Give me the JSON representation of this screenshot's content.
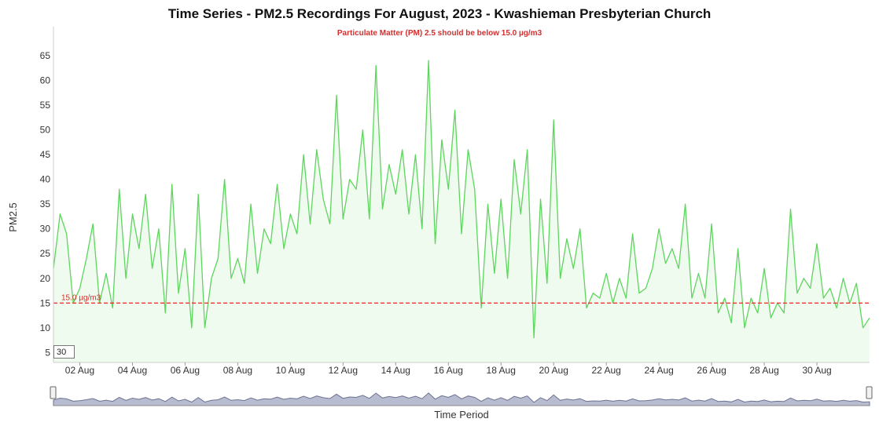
{
  "chart_data": {
    "type": "area",
    "title": "Time Series - PM2.5 Recordings For August, 2023 - Kwashieman Presbyterian Church",
    "subtitle": "Particulate Matter (PM) 2.5 should be below 15.0 µg/m3",
    "xlabel": "Time Period",
    "ylabel": "PM2.5",
    "ylim": [
      3,
      68
    ],
    "y_ticks": [
      5,
      10,
      15,
      20,
      25,
      30,
      35,
      40,
      45,
      50,
      55,
      60,
      65
    ],
    "x_range": [
      "2023-08-01",
      "2023-09-01"
    ],
    "x_ticks": [
      {
        "date": "2023-08-02",
        "label": "02 Aug"
      },
      {
        "date": "2023-08-04",
        "label": "04 Aug"
      },
      {
        "date": "2023-08-06",
        "label": "06 Aug"
      },
      {
        "date": "2023-08-08",
        "label": "08 Aug"
      },
      {
        "date": "2023-08-10",
        "label": "10 Aug"
      },
      {
        "date": "2023-08-12",
        "label": "12 Aug"
      },
      {
        "date": "2023-08-14",
        "label": "14 Aug"
      },
      {
        "date": "2023-08-16",
        "label": "16 Aug"
      },
      {
        "date": "2023-08-18",
        "label": "18 Aug"
      },
      {
        "date": "2023-08-20",
        "label": "20 Aug"
      },
      {
        "date": "2023-08-22",
        "label": "22 Aug"
      },
      {
        "date": "2023-08-24",
        "label": "24 Aug"
      },
      {
        "date": "2023-08-26",
        "label": "26 Aug"
      },
      {
        "date": "2023-08-28",
        "label": "28 Aug"
      },
      {
        "date": "2023-08-30",
        "label": "30 Aug"
      }
    ],
    "reference_line": {
      "value": 15.0,
      "label": "15.0 µg/m3",
      "color": "#e53935"
    },
    "series": [
      {
        "color": "#5cd65c",
        "fill": "#eefbee",
        "points": [
          [
            "2023-08-01 00:00",
            22
          ],
          [
            "2023-08-01 06:00",
            33
          ],
          [
            "2023-08-01 12:00",
            29
          ],
          [
            "2023-08-01 18:00",
            15
          ],
          [
            "2023-08-02 00:00",
            18
          ],
          [
            "2023-08-02 06:00",
            24
          ],
          [
            "2023-08-02 12:00",
            31
          ],
          [
            "2023-08-02 18:00",
            15
          ],
          [
            "2023-08-03 00:00",
            21
          ],
          [
            "2023-08-03 06:00",
            14
          ],
          [
            "2023-08-03 12:00",
            38
          ],
          [
            "2023-08-03 18:00",
            20
          ],
          [
            "2023-08-04 00:00",
            33
          ],
          [
            "2023-08-04 06:00",
            26
          ],
          [
            "2023-08-04 12:00",
            37
          ],
          [
            "2023-08-04 18:00",
            22
          ],
          [
            "2023-08-05 00:00",
            30
          ],
          [
            "2023-08-05 06:00",
            13
          ],
          [
            "2023-08-05 12:00",
            39
          ],
          [
            "2023-08-05 18:00",
            17
          ],
          [
            "2023-08-06 00:00",
            26
          ],
          [
            "2023-08-06 06:00",
            10
          ],
          [
            "2023-08-06 12:00",
            37
          ],
          [
            "2023-08-06 18:00",
            10
          ],
          [
            "2023-08-07 00:00",
            20
          ],
          [
            "2023-08-07 06:00",
            24
          ],
          [
            "2023-08-07 12:00",
            40
          ],
          [
            "2023-08-07 18:00",
            20
          ],
          [
            "2023-08-08 00:00",
            24
          ],
          [
            "2023-08-08 06:00",
            19
          ],
          [
            "2023-08-08 12:00",
            35
          ],
          [
            "2023-08-08 18:00",
            21
          ],
          [
            "2023-08-09 00:00",
            30
          ],
          [
            "2023-08-09 06:00",
            27
          ],
          [
            "2023-08-09 12:00",
            39
          ],
          [
            "2023-08-09 18:00",
            26
          ],
          [
            "2023-08-10 00:00",
            33
          ],
          [
            "2023-08-10 06:00",
            29
          ],
          [
            "2023-08-10 12:00",
            45
          ],
          [
            "2023-08-10 18:00",
            31
          ],
          [
            "2023-08-11 00:00",
            46
          ],
          [
            "2023-08-11 06:00",
            36
          ],
          [
            "2023-08-11 12:00",
            31
          ],
          [
            "2023-08-11 18:00",
            57
          ],
          [
            "2023-08-12 00:00",
            32
          ],
          [
            "2023-08-12 06:00",
            40
          ],
          [
            "2023-08-12 12:00",
            38
          ],
          [
            "2023-08-12 18:00",
            50
          ],
          [
            "2023-08-13 00:00",
            32
          ],
          [
            "2023-08-13 06:00",
            63
          ],
          [
            "2023-08-13 12:00",
            34
          ],
          [
            "2023-08-13 18:00",
            43
          ],
          [
            "2023-08-14 00:00",
            37
          ],
          [
            "2023-08-14 06:00",
            46
          ],
          [
            "2023-08-14 12:00",
            33
          ],
          [
            "2023-08-14 18:00",
            45
          ],
          [
            "2023-08-15 00:00",
            30
          ],
          [
            "2023-08-15 06:00",
            64
          ],
          [
            "2023-08-15 12:00",
            27
          ],
          [
            "2023-08-15 18:00",
            48
          ],
          [
            "2023-08-16 00:00",
            38
          ],
          [
            "2023-08-16 06:00",
            54
          ],
          [
            "2023-08-16 12:00",
            29
          ],
          [
            "2023-08-16 18:00",
            46
          ],
          [
            "2023-08-17 00:00",
            38
          ],
          [
            "2023-08-17 06:00",
            14
          ],
          [
            "2023-08-17 12:00",
            35
          ],
          [
            "2023-08-17 18:00",
            21
          ],
          [
            "2023-08-18 00:00",
            36
          ],
          [
            "2023-08-18 06:00",
            20
          ],
          [
            "2023-08-18 12:00",
            44
          ],
          [
            "2023-08-18 18:00",
            33
          ],
          [
            "2023-08-19 00:00",
            46
          ],
          [
            "2023-08-19 06:00",
            8
          ],
          [
            "2023-08-19 12:00",
            36
          ],
          [
            "2023-08-19 18:00",
            19
          ],
          [
            "2023-08-20 00:00",
            52
          ],
          [
            "2023-08-20 06:00",
            20
          ],
          [
            "2023-08-20 12:00",
            28
          ],
          [
            "2023-08-20 18:00",
            22
          ],
          [
            "2023-08-21 00:00",
            30
          ],
          [
            "2023-08-21 06:00",
            14
          ],
          [
            "2023-08-21 12:00",
            17
          ],
          [
            "2023-08-21 18:00",
            16
          ],
          [
            "2023-08-22 00:00",
            21
          ],
          [
            "2023-08-22 06:00",
            15
          ],
          [
            "2023-08-22 12:00",
            20
          ],
          [
            "2023-08-22 18:00",
            16
          ],
          [
            "2023-08-23 00:00",
            29
          ],
          [
            "2023-08-23 06:00",
            17
          ],
          [
            "2023-08-23 12:00",
            18
          ],
          [
            "2023-08-23 18:00",
            22
          ],
          [
            "2023-08-24 00:00",
            30
          ],
          [
            "2023-08-24 06:00",
            23
          ],
          [
            "2023-08-24 12:00",
            26
          ],
          [
            "2023-08-24 18:00",
            22
          ],
          [
            "2023-08-25 00:00",
            35
          ],
          [
            "2023-08-25 06:00",
            16
          ],
          [
            "2023-08-25 12:00",
            21
          ],
          [
            "2023-08-25 18:00",
            16
          ],
          [
            "2023-08-26 00:00",
            31
          ],
          [
            "2023-08-26 06:00",
            13
          ],
          [
            "2023-08-26 12:00",
            16
          ],
          [
            "2023-08-26 18:00",
            11
          ],
          [
            "2023-08-27 00:00",
            26
          ],
          [
            "2023-08-27 06:00",
            10
          ],
          [
            "2023-08-27 12:00",
            16
          ],
          [
            "2023-08-27 18:00",
            13
          ],
          [
            "2023-08-28 00:00",
            22
          ],
          [
            "2023-08-28 06:00",
            12
          ],
          [
            "2023-08-28 12:00",
            15
          ],
          [
            "2023-08-28 18:00",
            13
          ],
          [
            "2023-08-29 00:00",
            34
          ],
          [
            "2023-08-29 06:00",
            17
          ],
          [
            "2023-08-29 12:00",
            20
          ],
          [
            "2023-08-29 18:00",
            18
          ],
          [
            "2023-08-30 00:00",
            27
          ],
          [
            "2023-08-30 06:00",
            16
          ],
          [
            "2023-08-30 12:00",
            18
          ],
          [
            "2023-08-30 18:00",
            14
          ],
          [
            "2023-08-31 00:00",
            20
          ],
          [
            "2023-08-31 06:00",
            15
          ],
          [
            "2023-08-31 12:00",
            19
          ],
          [
            "2023-08-31 18:00",
            10
          ],
          [
            "2023-09-01 00:00",
            12
          ]
        ]
      }
    ],
    "grid": false,
    "legend": "none"
  },
  "controls": {
    "period_input_value": "30"
  },
  "colors": {
    "navigator_fill": "#b7bcd0",
    "navigator_stroke": "#6d7391",
    "axis": "#cccccc"
  }
}
